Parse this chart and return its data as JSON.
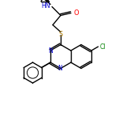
{
  "bg_color": "#ffffff",
  "line_color": "#000000",
  "atom_colors": {
    "N": "#0000cd",
    "O": "#ff0000",
    "S": "#b8860b",
    "Cl": "#008000",
    "C": "#000000"
  },
  "figsize": [
    1.46,
    1.67
  ],
  "dpi": 100
}
